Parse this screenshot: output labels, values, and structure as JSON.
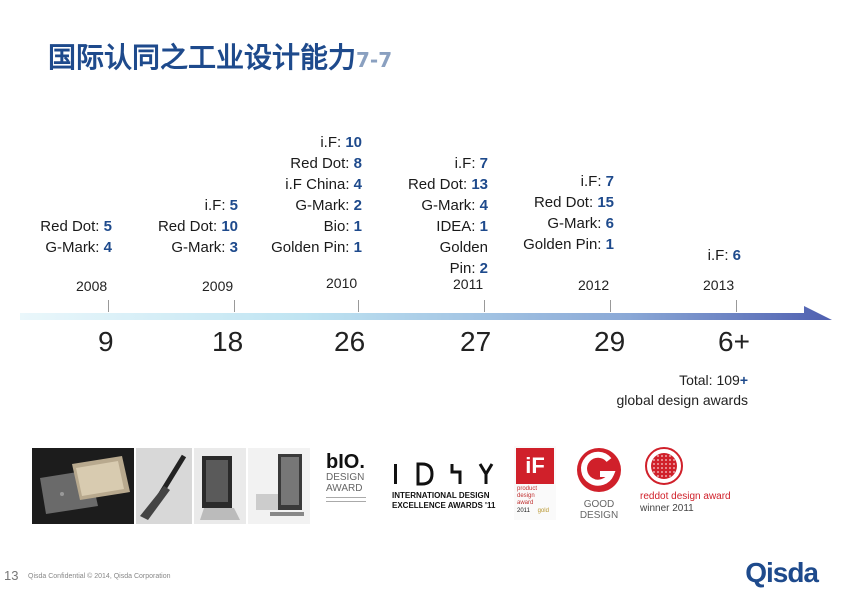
{
  "title": {
    "main": "国际认同之工业设计能力",
    "suffix": "7-7"
  },
  "awards": [
    {
      "lines": [
        {
          "label": "Red Dot: ",
          "value": "5"
        },
        {
          "label": "G-Mark: ",
          "value": "4"
        }
      ]
    },
    {
      "lines": [
        {
          "label": "i.F: ",
          "value": "5"
        },
        {
          "label": "Red Dot: ",
          "value": "10"
        },
        {
          "label": "G-Mark: ",
          "value": "3"
        }
      ]
    },
    {
      "lines": [
        {
          "label": "i.F: ",
          "value": "10"
        },
        {
          "label": "Red Dot: ",
          "value": "8"
        },
        {
          "label": "i.F China: ",
          "value": "4"
        },
        {
          "label": "G-Mark: ",
          "value": "2"
        },
        {
          "label": "Bio: ",
          "value": "1"
        },
        {
          "label": "Golden Pin: ",
          "value": "1"
        }
      ]
    },
    {
      "lines": [
        {
          "label": "i.F: ",
          "value": "7"
        },
        {
          "label": "Red Dot: ",
          "value": "13"
        },
        {
          "label": "G-Mark: ",
          "value": "4"
        },
        {
          "label": "IDEA: ",
          "value": "1"
        },
        {
          "label": "Golden",
          "value": ""
        },
        {
          "label": "Pin: ",
          "value": "2"
        }
      ]
    },
    {
      "lines": [
        {
          "label": "i.F: ",
          "value": "7"
        },
        {
          "label": "Red Dot: ",
          "value": "15"
        },
        {
          "label": "G-Mark: ",
          "value": "6"
        },
        {
          "label": "Golden Pin: ",
          "value": "1"
        }
      ]
    },
    {
      "lines": [
        {
          "label": "i.F: ",
          "value": "6"
        }
      ]
    }
  ],
  "years": [
    "2008",
    "2009",
    "2010",
    "2011",
    "2012",
    "2013"
  ],
  "counts": [
    "9",
    "18",
    "26",
    "27",
    "29",
    "6+"
  ],
  "total": {
    "line1_label": "Total: 109",
    "line1_plus": "+",
    "line2": "global design awards"
  },
  "logos": {
    "bio_1": "bIO.",
    "bio_2": "DESIGN",
    "bio_3": "AWARD",
    "idea_1": "INTERNATIONAL DESIGN",
    "idea_2": "EXCELLENCE AWARDS '11",
    "if_1": "iF",
    "if_2": "product",
    "if_3": "design",
    "if_4": "award",
    "if_5": "2011",
    "if_6": "gold",
    "good_1": "GOOD",
    "good_2": "DESIGN",
    "reddot_1": "reddot design award",
    "reddot_2": "winner 2011"
  },
  "footer": {
    "page": "13",
    "text": "Qisda Confidential © 2014, Qisda Corporation",
    "brand": "Qisda"
  },
  "colors": {
    "accent": "#1e4a8c",
    "timeline_start": "#e8f6fb",
    "timeline_end": "#5a6db8",
    "reddot": "#d0202a"
  }
}
